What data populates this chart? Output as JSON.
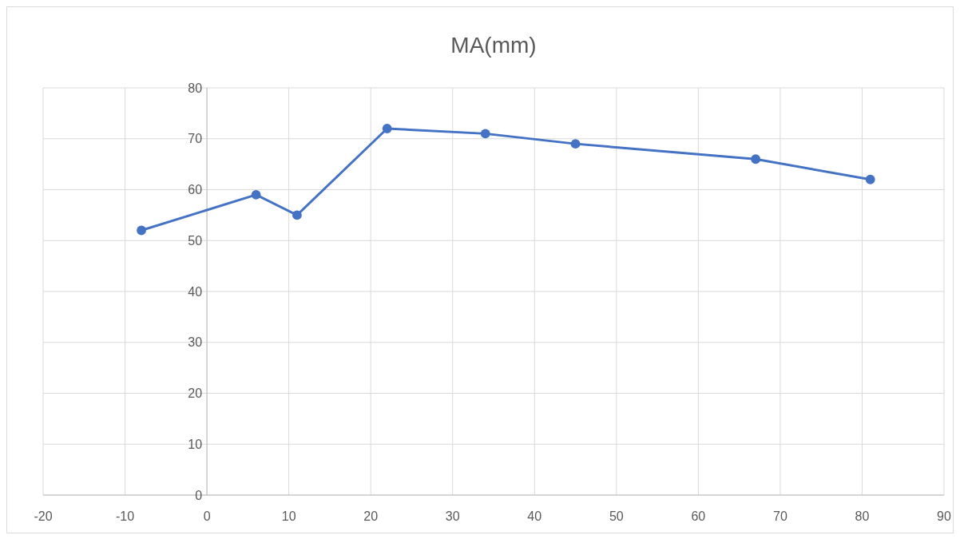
{
  "chart_data": {
    "type": "line",
    "title": "MA(mm)",
    "x": [
      -8,
      6,
      11,
      22,
      34,
      45,
      67,
      81
    ],
    "series": [
      {
        "color": "#4472c4",
        "values": [
          52,
          59,
          55,
          72,
          71,
          69,
          66,
          62
        ]
      }
    ],
    "xlim": [
      -20,
      90
    ],
    "xticks": [
      -20,
      -10,
      0,
      10,
      20,
      30,
      40,
      50,
      60,
      70,
      80,
      90
    ],
    "ylim": [
      0,
      80
    ],
    "yticks": [
      0,
      10,
      20,
      30,
      40,
      50,
      60,
      70,
      80
    ],
    "grid": true,
    "marker": "circle",
    "line_style": "solid"
  }
}
